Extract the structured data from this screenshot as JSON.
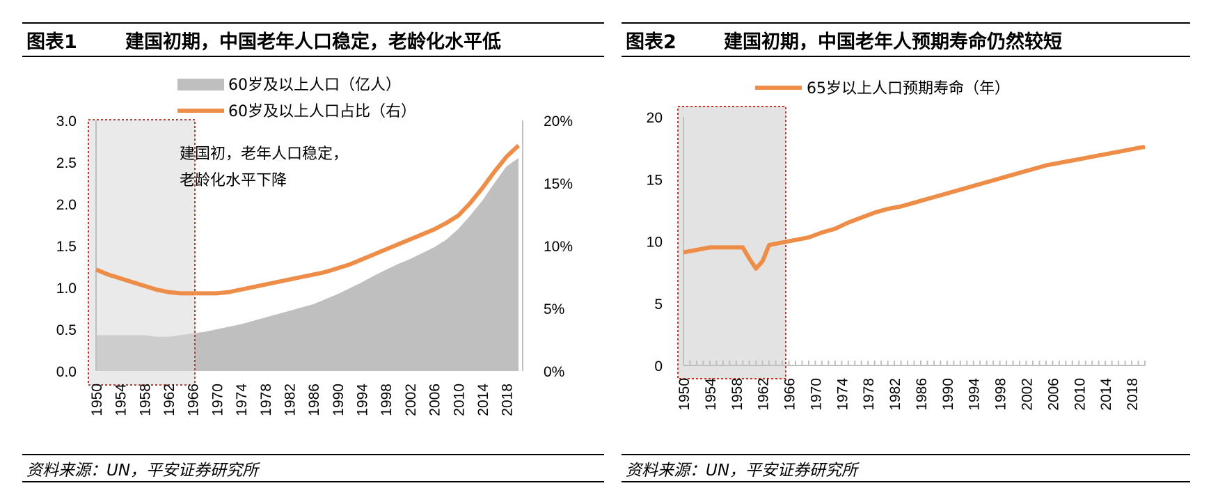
{
  "charts": [
    {
      "figure_label": "图表1",
      "title": "建国初期，中国老年人口稳定，老龄化水平低",
      "source": "资料来源：UN，平安证券研究所"
    },
    {
      "figure_label": "图表2",
      "title": "建国初期，中国老年人预期寿命仍然较短",
      "source": "资料来源：UN，平安证券研究所"
    }
  ],
  "colors": {
    "area": "#bfbfbf",
    "line": "#ed8d48",
    "highlight_fill": "#d9d9d9",
    "highlight_border": "#c0392b",
    "axis": "#bfbfbf"
  },
  "chart_data": [
    {
      "type": "area+line",
      "title": "建国初期，中国老年人口稳定，老龄化水平低",
      "x_tick_labels": [
        "1950",
        "1954",
        "1958",
        "1962",
        "1966",
        "1970",
        "1974",
        "1978",
        "1982",
        "1986",
        "1990",
        "1994",
        "1998",
        "2002",
        "2006",
        "2010",
        "2014",
        "2018"
      ],
      "x_range": [
        1950,
        2020
      ],
      "left_axis": {
        "ticks": [
          "0.0",
          "0.5",
          "1.0",
          "1.5",
          "2.0",
          "2.5",
          "3.0"
        ],
        "ylim": [
          0,
          3.0
        ]
      },
      "right_axis": {
        "ticks": [
          "0%",
          "5%",
          "10%",
          "15%",
          "20%"
        ],
        "ylim": [
          0,
          20
        ]
      },
      "annotation": [
        "建国初，老年人口稳定，",
        "老龄化水平下降"
      ],
      "highlight_years": [
        1950,
        1965
      ],
      "series": [
        {
          "name": "60岁及以上人口（亿人）",
          "type": "area",
          "axis": "left",
          "points": [
            [
              1950,
              0.43
            ],
            [
              1955,
              0.43
            ],
            [
              1958,
              0.43
            ],
            [
              1960,
              0.41
            ],
            [
              1962,
              0.41
            ],
            [
              1964,
              0.43
            ],
            [
              1966,
              0.45
            ],
            [
              1968,
              0.47
            ],
            [
              1970,
              0.5
            ],
            [
              1972,
              0.53
            ],
            [
              1974,
              0.56
            ],
            [
              1976,
              0.6
            ],
            [
              1978,
              0.64
            ],
            [
              1980,
              0.68
            ],
            [
              1982,
              0.72
            ],
            [
              1984,
              0.76
            ],
            [
              1986,
              0.8
            ],
            [
              1988,
              0.86
            ],
            [
              1990,
              0.92
            ],
            [
              1992,
              0.99
            ],
            [
              1994,
              1.06
            ],
            [
              1996,
              1.14
            ],
            [
              1998,
              1.21
            ],
            [
              2000,
              1.28
            ],
            [
              2002,
              1.34
            ],
            [
              2004,
              1.41
            ],
            [
              2006,
              1.48
            ],
            [
              2008,
              1.57
            ],
            [
              2010,
              1.7
            ],
            [
              2012,
              1.86
            ],
            [
              2014,
              2.04
            ],
            [
              2016,
              2.25
            ],
            [
              2018,
              2.45
            ],
            [
              2020,
              2.55
            ]
          ]
        },
        {
          "name": "60岁及以上人口占比（右）",
          "type": "line",
          "axis": "right",
          "points": [
            [
              1950,
              8.1
            ],
            [
              1952,
              7.7
            ],
            [
              1954,
              7.4
            ],
            [
              1956,
              7.1
            ],
            [
              1958,
              6.8
            ],
            [
              1960,
              6.5
            ],
            [
              1962,
              6.3
            ],
            [
              1964,
              6.2
            ],
            [
              1966,
              6.2
            ],
            [
              1968,
              6.2
            ],
            [
              1970,
              6.2
            ],
            [
              1972,
              6.3
            ],
            [
              1974,
              6.5
            ],
            [
              1976,
              6.7
            ],
            [
              1978,
              6.9
            ],
            [
              1980,
              7.1
            ],
            [
              1982,
              7.3
            ],
            [
              1984,
              7.5
            ],
            [
              1986,
              7.7
            ],
            [
              1988,
              7.9
            ],
            [
              1990,
              8.2
            ],
            [
              1992,
              8.5
            ],
            [
              1994,
              8.9
            ],
            [
              1996,
              9.3
            ],
            [
              1998,
              9.7
            ],
            [
              2000,
              10.1
            ],
            [
              2002,
              10.5
            ],
            [
              2004,
              10.9
            ],
            [
              2006,
              11.3
            ],
            [
              2008,
              11.8
            ],
            [
              2010,
              12.4
            ],
            [
              2012,
              13.4
            ],
            [
              2014,
              14.6
            ],
            [
              2016,
              15.9
            ],
            [
              2018,
              17.1
            ],
            [
              2020,
              18.0
            ]
          ]
        }
      ]
    },
    {
      "type": "line",
      "title": "建国初期，中国老年人预期寿命仍然较短",
      "x_tick_labels": [
        "1950",
        "1954",
        "1958",
        "1962",
        "1966",
        "1970",
        "1974",
        "1978",
        "1982",
        "1986",
        "1990",
        "1994",
        "1998",
        "2002",
        "2006",
        "2010",
        "2014",
        "2018"
      ],
      "x_range": [
        1950,
        2020
      ],
      "y_axis": {
        "ticks": [
          "0",
          "5",
          "10",
          "15",
          "20"
        ],
        "ylim": [
          0,
          20
        ]
      },
      "highlight_years": [
        1950,
        1965
      ],
      "series": [
        {
          "name": "65岁以上人口预期寿命（年）",
          "points": [
            [
              1950,
              9.1
            ],
            [
              1952,
              9.3
            ],
            [
              1954,
              9.5
            ],
            [
              1956,
              9.5
            ],
            [
              1958,
              9.5
            ],
            [
              1959,
              9.5
            ],
            [
              1960,
              8.6
            ],
            [
              1961,
              7.8
            ],
            [
              1962,
              8.4
            ],
            [
              1963,
              9.7
            ],
            [
              1965,
              9.9
            ],
            [
              1967,
              10.1
            ],
            [
              1969,
              10.3
            ],
            [
              1971,
              10.7
            ],
            [
              1973,
              11.0
            ],
            [
              1975,
              11.5
            ],
            [
              1977,
              11.9
            ],
            [
              1979,
              12.3
            ],
            [
              1981,
              12.6
            ],
            [
              1983,
              12.8
            ],
            [
              1985,
              13.1
            ],
            [
              1987,
              13.4
            ],
            [
              1989,
              13.7
            ],
            [
              1991,
              14.0
            ],
            [
              1993,
              14.3
            ],
            [
              1995,
              14.6
            ],
            [
              1997,
              14.9
            ],
            [
              1999,
              15.2
            ],
            [
              2001,
              15.5
            ],
            [
              2003,
              15.8
            ],
            [
              2005,
              16.1
            ],
            [
              2007,
              16.3
            ],
            [
              2009,
              16.5
            ],
            [
              2011,
              16.7
            ],
            [
              2013,
              16.9
            ],
            [
              2015,
              17.1
            ],
            [
              2017,
              17.3
            ],
            [
              2019,
              17.5
            ],
            [
              2020,
              17.6
            ]
          ]
        }
      ]
    }
  ]
}
